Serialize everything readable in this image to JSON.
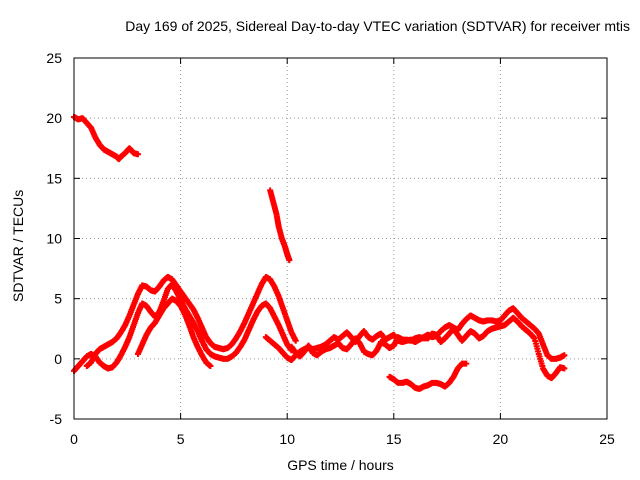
{
  "chart_data": {
    "type": "scatter",
    "title": "Day 169 of 2025, Sidereal Day-to-day VTEC variation (SDTVAR) for receiver mtis",
    "xlabel": "GPS time / hours",
    "ylabel": "SDTVAR / TECUs",
    "xlim": [
      0,
      25
    ],
    "ylim": [
      -5,
      25
    ],
    "xticks": [
      0,
      5,
      10,
      15,
      20,
      25
    ],
    "yticks": [
      -5,
      0,
      5,
      10,
      15,
      20,
      25
    ],
    "grid": true,
    "marker_color": "#ff0000",
    "series": [
      {
        "name": "s1",
        "points": [
          [
            0.0,
            20.1
          ],
          [
            0.2,
            19.9
          ],
          [
            0.4,
            20.0
          ],
          [
            0.6,
            19.6
          ],
          [
            0.8,
            19.2
          ],
          [
            1.0,
            18.4
          ],
          [
            1.2,
            17.8
          ],
          [
            1.4,
            17.4
          ],
          [
            1.6,
            17.2
          ],
          [
            1.8,
            17.0
          ],
          [
            2.0,
            16.8
          ],
          [
            2.1,
            16.6
          ],
          [
            2.2,
            16.8
          ],
          [
            2.4,
            17.1
          ],
          [
            2.6,
            17.5
          ],
          [
            2.8,
            17.1
          ],
          [
            3.0,
            17.0
          ]
        ]
      },
      {
        "name": "s2",
        "points": [
          [
            9.2,
            14.0
          ],
          [
            9.35,
            13.0
          ],
          [
            9.5,
            12.0
          ],
          [
            9.6,
            11.0
          ],
          [
            9.75,
            10.0
          ],
          [
            9.9,
            9.3
          ],
          [
            10.0,
            8.7
          ],
          [
            10.1,
            8.2
          ]
        ]
      },
      {
        "name": "s3",
        "points": [
          [
            0.0,
            -1.0
          ],
          [
            0.2,
            -0.6
          ],
          [
            0.4,
            -0.2
          ],
          [
            0.6,
            0.2
          ],
          [
            0.8,
            0.4
          ],
          [
            1.0,
            0.2
          ],
          [
            1.2,
            -0.3
          ],
          [
            1.4,
            -0.6
          ],
          [
            1.6,
            -0.8
          ],
          [
            1.8,
            -0.7
          ],
          [
            2.0,
            -0.3
          ],
          [
            2.2,
            0.3
          ],
          [
            2.4,
            1.0
          ],
          [
            2.6,
            1.8
          ],
          [
            2.8,
            2.8
          ],
          [
            3.0,
            3.8
          ],
          [
            3.2,
            4.6
          ],
          [
            3.4,
            4.4
          ],
          [
            3.6,
            3.9
          ],
          [
            3.8,
            3.5
          ],
          [
            4.0,
            3.9
          ],
          [
            4.2,
            4.8
          ],
          [
            4.4,
            5.8
          ],
          [
            4.6,
            6.2
          ],
          [
            4.8,
            5.6
          ],
          [
            5.0,
            4.9
          ],
          [
            5.2,
            4.2
          ],
          [
            5.4,
            3.6
          ],
          [
            5.6,
            3.0
          ],
          [
            5.8,
            2.3
          ],
          [
            6.0,
            1.5
          ],
          [
            6.2,
            0.8
          ],
          [
            6.4,
            0.4
          ],
          [
            6.6,
            0.2
          ],
          [
            6.8,
            0.1
          ],
          [
            7.0,
            0.0
          ],
          [
            7.2,
            0.0
          ],
          [
            7.4,
            0.2
          ],
          [
            7.6,
            0.5
          ],
          [
            7.8,
            1.0
          ],
          [
            8.0,
            1.6
          ],
          [
            8.2,
            2.4
          ],
          [
            8.4,
            3.2
          ],
          [
            8.6,
            3.9
          ],
          [
            8.8,
            4.4
          ],
          [
            9.0,
            4.6
          ],
          [
            9.2,
            4.2
          ],
          [
            9.4,
            3.5
          ],
          [
            9.6,
            2.8
          ],
          [
            9.8,
            2.0
          ],
          [
            10.0,
            1.2
          ],
          [
            10.2,
            0.7
          ]
        ]
      },
      {
        "name": "s4",
        "points": [
          [
            0.6,
            -0.6
          ],
          [
            0.8,
            -0.3
          ],
          [
            1.0,
            0.4
          ],
          [
            1.2,
            0.8
          ],
          [
            1.4,
            1.0
          ],
          [
            1.6,
            1.2
          ],
          [
            1.8,
            1.4
          ],
          [
            2.0,
            1.7
          ],
          [
            2.2,
            2.2
          ],
          [
            2.4,
            2.8
          ],
          [
            2.6,
            3.6
          ],
          [
            2.8,
            4.5
          ],
          [
            3.0,
            5.4
          ],
          [
            3.2,
            6.1
          ],
          [
            3.4,
            6.0
          ],
          [
            3.6,
            5.7
          ],
          [
            3.8,
            5.6
          ],
          [
            4.0,
            6.0
          ],
          [
            4.2,
            6.5
          ],
          [
            4.4,
            6.8
          ],
          [
            4.6,
            6.6
          ],
          [
            4.8,
            6.1
          ],
          [
            5.0,
            5.6
          ],
          [
            5.2,
            5.1
          ],
          [
            5.4,
            4.6
          ],
          [
            5.6,
            4.1
          ],
          [
            5.8,
            3.4
          ],
          [
            6.0,
            2.6
          ],
          [
            6.2,
            1.8
          ],
          [
            6.4,
            1.3
          ],
          [
            6.6,
            1.0
          ],
          [
            6.8,
            0.9
          ],
          [
            7.0,
            0.8
          ],
          [
            7.2,
            0.9
          ],
          [
            7.4,
            1.2
          ],
          [
            7.6,
            1.7
          ],
          [
            7.8,
            2.3
          ],
          [
            8.0,
            3.0
          ],
          [
            8.2,
            3.8
          ],
          [
            8.4,
            4.6
          ],
          [
            8.6,
            5.4
          ],
          [
            8.8,
            6.2
          ],
          [
            9.0,
            6.8
          ],
          [
            9.2,
            6.6
          ],
          [
            9.4,
            6.0
          ],
          [
            9.6,
            5.2
          ],
          [
            9.8,
            4.2
          ],
          [
            10.0,
            3.2
          ],
          [
            10.2,
            2.2
          ],
          [
            10.4,
            1.5
          ]
        ]
      },
      {
        "name": "s5",
        "points": [
          [
            3.0,
            0.4
          ],
          [
            3.2,
            1.2
          ],
          [
            3.4,
            2.0
          ],
          [
            3.6,
            2.6
          ],
          [
            3.8,
            3.0
          ],
          [
            4.0,
            3.6
          ],
          [
            4.2,
            4.2
          ],
          [
            4.4,
            4.6
          ],
          [
            4.6,
            5.0
          ],
          [
            4.8,
            4.8
          ],
          [
            5.0,
            4.4
          ],
          [
            5.2,
            3.7
          ],
          [
            5.4,
            2.8
          ],
          [
            5.6,
            1.8
          ],
          [
            5.8,
            1.0
          ],
          [
            6.0,
            0.3
          ],
          [
            6.2,
            -0.3
          ],
          [
            6.4,
            -0.6
          ]
        ]
      },
      {
        "name": "s6",
        "points": [
          [
            9.0,
            1.8
          ],
          [
            9.2,
            1.5
          ],
          [
            9.4,
            1.2
          ],
          [
            9.6,
            0.9
          ],
          [
            9.8,
            0.5
          ],
          [
            10.0,
            0.1
          ],
          [
            10.2,
            -0.1
          ],
          [
            10.4,
            0.3
          ],
          [
            10.6,
            0.6
          ],
          [
            10.8,
            0.8
          ],
          [
            11.0,
            0.9
          ],
          [
            11.2,
            0.8
          ],
          [
            11.4,
            0.9
          ],
          [
            11.6,
            1.0
          ],
          [
            11.8,
            1.2
          ],
          [
            12.0,
            1.5
          ],
          [
            12.2,
            1.8
          ],
          [
            12.4,
            1.6
          ],
          [
            12.6,
            1.9
          ],
          [
            12.8,
            2.2
          ],
          [
            13.0,
            1.8
          ],
          [
            13.2,
            1.4
          ],
          [
            13.4,
            1.9
          ],
          [
            13.6,
            2.3
          ],
          [
            13.8,
            1.8
          ],
          [
            14.0,
            1.6
          ],
          [
            14.2,
            1.9
          ],
          [
            14.4,
            2.1
          ],
          [
            14.6,
            1.6
          ],
          [
            14.8,
            1.8
          ],
          [
            15.0,
            2.0
          ],
          [
            15.2,
            1.5
          ],
          [
            15.4,
            1.4
          ],
          [
            15.6,
            1.5
          ],
          [
            15.8,
            1.6
          ],
          [
            16.0,
            1.4
          ],
          [
            16.2,
            1.6
          ],
          [
            16.4,
            1.8
          ],
          [
            16.6,
            2.0
          ],
          [
            16.8,
            1.8
          ],
          [
            17.0,
            1.9
          ],
          [
            17.2,
            2.3
          ],
          [
            17.4,
            2.6
          ],
          [
            17.6,
            2.8
          ],
          [
            17.8,
            2.6
          ],
          [
            18.0,
            2.4
          ],
          [
            18.2,
            2.9
          ],
          [
            18.4,
            3.3
          ],
          [
            18.6,
            3.6
          ],
          [
            18.8,
            3.4
          ],
          [
            19.0,
            3.2
          ],
          [
            19.2,
            3.1
          ],
          [
            19.4,
            3.2
          ],
          [
            19.6,
            3.2
          ],
          [
            19.8,
            3.1
          ],
          [
            20.0,
            3.2
          ],
          [
            20.2,
            3.6
          ],
          [
            20.4,
            4.0
          ],
          [
            20.6,
            4.2
          ],
          [
            20.8,
            3.8
          ],
          [
            21.0,
            3.4
          ],
          [
            21.2,
            3.1
          ],
          [
            21.4,
            2.8
          ],
          [
            21.6,
            2.5
          ],
          [
            21.8,
            2.1
          ],
          [
            22.0,
            1.2
          ],
          [
            22.2,
            0.3
          ],
          [
            22.4,
            0.0
          ],
          [
            22.6,
            0.0
          ],
          [
            22.8,
            0.1
          ],
          [
            23.0,
            0.3
          ]
        ]
      },
      {
        "name": "s7",
        "points": [
          [
            10.2,
            1.0
          ],
          [
            10.4,
            0.5
          ],
          [
            10.6,
            0.2
          ],
          [
            10.8,
            0.6
          ],
          [
            11.0,
            1.1
          ],
          [
            11.2,
            0.5
          ],
          [
            11.4,
            0.3
          ],
          [
            11.6,
            0.6
          ],
          [
            11.8,
            0.8
          ],
          [
            12.0,
            0.9
          ],
          [
            12.2,
            1.1
          ],
          [
            12.4,
            1.3
          ],
          [
            12.6,
            0.9
          ],
          [
            12.8,
            0.8
          ],
          [
            13.0,
            1.2
          ],
          [
            13.2,
            1.7
          ],
          [
            13.4,
            1.3
          ],
          [
            13.6,
            0.6
          ],
          [
            13.8,
            0.4
          ],
          [
            14.0,
            0.3
          ],
          [
            14.2,
            0.7
          ],
          [
            14.4,
            1.4
          ],
          [
            14.6,
            1.2
          ],
          [
            14.8,
            0.9
          ],
          [
            15.0,
            1.1
          ],
          [
            15.2,
            1.8
          ],
          [
            15.4,
            1.6
          ],
          [
            15.6,
            1.6
          ],
          [
            15.8,
            1.5
          ],
          [
            16.0,
            1.7
          ],
          [
            16.2,
            1.8
          ],
          [
            16.4,
            1.7
          ],
          [
            16.6,
            1.7
          ],
          [
            16.8,
            2.1
          ],
          [
            17.0,
            2.0
          ],
          [
            17.2,
            1.4
          ],
          [
            17.4,
            1.7
          ],
          [
            17.6,
            2.1
          ],
          [
            17.8,
            2.5
          ],
          [
            18.0,
            2.0
          ],
          [
            18.2,
            1.5
          ],
          [
            18.4,
            1.9
          ],
          [
            18.6,
            2.3
          ],
          [
            18.8,
            2.1
          ],
          [
            19.0,
            1.7
          ],
          [
            19.2,
            1.9
          ],
          [
            19.4,
            2.3
          ],
          [
            19.6,
            2.5
          ],
          [
            19.8,
            2.6
          ],
          [
            20.0,
            2.7
          ],
          [
            20.2,
            2.8
          ],
          [
            20.4,
            3.1
          ],
          [
            20.6,
            3.4
          ],
          [
            20.8,
            3.1
          ],
          [
            21.0,
            2.7
          ],
          [
            21.2,
            2.4
          ],
          [
            21.4,
            2.1
          ],
          [
            21.6,
            1.7
          ],
          [
            21.8,
            0.4
          ],
          [
            22.0,
            -0.8
          ],
          [
            22.2,
            -1.4
          ],
          [
            22.4,
            -1.6
          ],
          [
            22.6,
            -1.2
          ],
          [
            22.8,
            -0.7
          ],
          [
            23.0,
            -0.8
          ]
        ]
      },
      {
        "name": "s8",
        "points": [
          [
            14.8,
            -1.5
          ],
          [
            15.0,
            -1.7
          ],
          [
            15.2,
            -2.0
          ],
          [
            15.4,
            -2.0
          ],
          [
            15.6,
            -1.9
          ],
          [
            15.8,
            -2.1
          ],
          [
            16.0,
            -2.4
          ],
          [
            16.2,
            -2.5
          ],
          [
            16.4,
            -2.3
          ],
          [
            16.6,
            -2.2
          ],
          [
            16.8,
            -2.0
          ],
          [
            17.0,
            -2.0
          ],
          [
            17.2,
            -2.1
          ],
          [
            17.4,
            -2.3
          ],
          [
            17.6,
            -2.0
          ],
          [
            17.8,
            -1.5
          ],
          [
            18.0,
            -0.8
          ],
          [
            18.2,
            -0.4
          ],
          [
            18.4,
            -0.4
          ]
        ]
      }
    ]
  }
}
